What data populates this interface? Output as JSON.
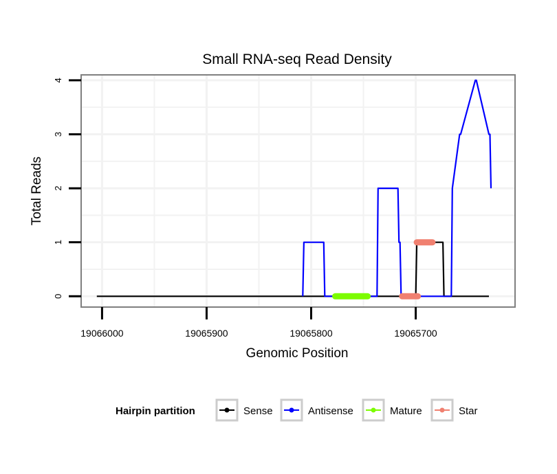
{
  "chart_data": {
    "type": "line",
    "title": "Small RNA-seq Read Density",
    "xlabel": "Genomic Position",
    "ylabel": "Total Reads",
    "x_reversed": true,
    "xlim": [
      19066020,
      19065605
    ],
    "ylim": [
      -0.2,
      4.1
    ],
    "x_ticks": [
      19066000,
      19065900,
      19065800,
      19065700
    ],
    "x_tick_labels": [
      "19066000",
      "19065900",
      "19065800",
      "19065700"
    ],
    "y_ticks": [
      0,
      1,
      2,
      3,
      4
    ],
    "y_tick_labels": [
      "0",
      "1",
      "2",
      "3",
      "4"
    ],
    "grid": true,
    "series": [
      {
        "name": "Sense",
        "color": "#000000",
        "x": [
          19066005,
          19065700,
          19065699,
          19065674,
          19065673,
          19065630
        ],
        "values": [
          0,
          0,
          1,
          1,
          0,
          0
        ]
      },
      {
        "name": "Antisense",
        "color": "#0000ff",
        "x": [
          19065808,
          19065807,
          19065788,
          19065787,
          19065737,
          19065736,
          19065717,
          19065716,
          19065715,
          19065714,
          19065711,
          19065710,
          19065694,
          19065693,
          19065683,
          19065682,
          19065674,
          19065673,
          19065666,
          19065665,
          19065658,
          19065657,
          19065643,
          19065642,
          19065630,
          19065629,
          19065628
        ],
        "values": [
          0,
          1,
          1,
          0,
          0,
          2,
          2,
          1,
          1,
          0,
          0,
          0,
          0,
          0,
          0,
          0,
          0,
          0,
          0,
          2,
          3,
          3,
          4,
          4,
          3,
          3,
          2
        ]
      },
      {
        "name": "Mature",
        "color": "#7cfc00",
        "x": [
          19065777,
          19065746
        ],
        "values": [
          0,
          0
        ]
      },
      {
        "name": "Star",
        "color": "#f08070",
        "x": [
          19065713,
          19065698
        ],
        "values": [
          0,
          0
        ]
      },
      {
        "name": "Star",
        "color": "#f08070",
        "x": [
          19065699,
          19065684
        ],
        "values": [
          1,
          1
        ]
      }
    ],
    "legend": {
      "title": "Hairpin partition",
      "placement": "bottom",
      "entries": [
        {
          "label": "Sense",
          "color": "#000000"
        },
        {
          "label": "Antisense",
          "color": "#0000ff"
        },
        {
          "label": "Mature",
          "color": "#7cfc00"
        },
        {
          "label": "Star",
          "color": "#f08070"
        }
      ]
    }
  }
}
